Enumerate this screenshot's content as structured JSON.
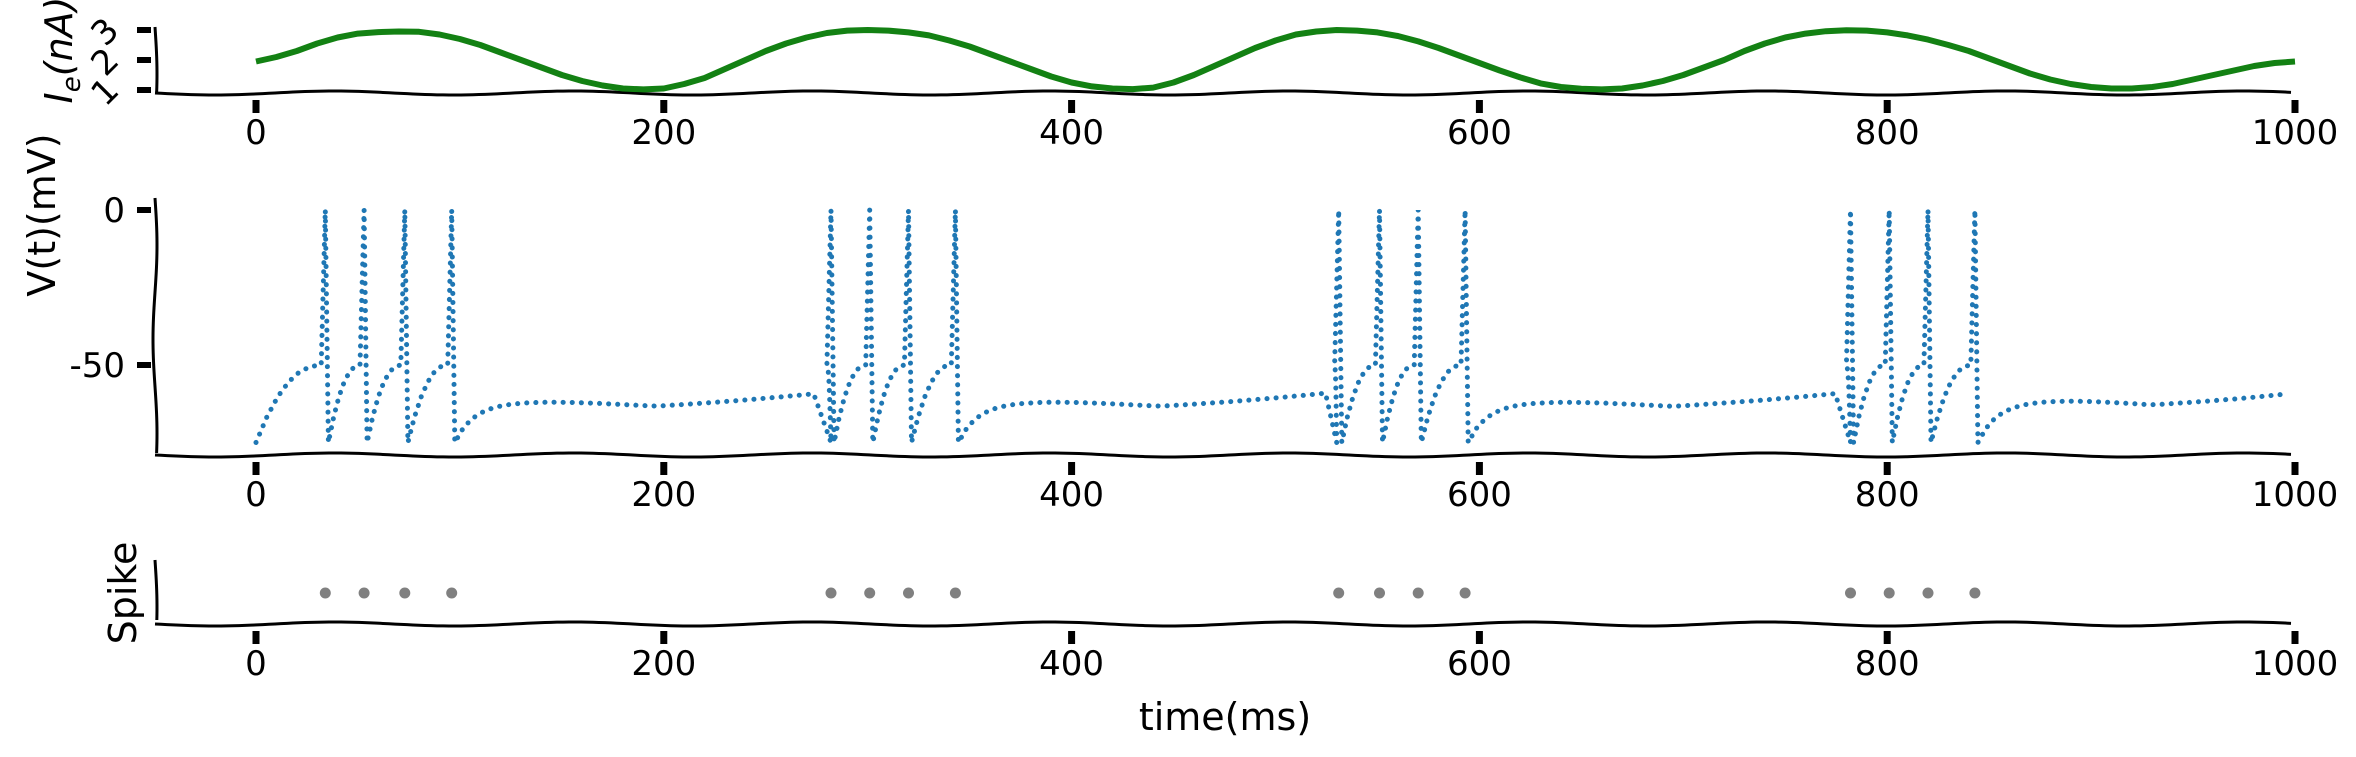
{
  "chart_data": [
    {
      "id": "current",
      "type": "line",
      "ylabel": "I_e(nA)",
      "ylabel_main": "I",
      "ylabel_sub": "e",
      "ylabel_rest": "(nA)",
      "xlim": [
        -50,
        1000
      ],
      "ylim": [
        1,
        3
      ],
      "xticks": [
        "0",
        "200",
        "400",
        "600",
        "800",
        "1000"
      ],
      "yticks": [
        "1",
        "2",
        "3"
      ],
      "color": "#138113",
      "series": [
        {
          "x": [
            0,
            10,
            20,
            30,
            40,
            50,
            60,
            70,
            80,
            90,
            100,
            110,
            120,
            130,
            140,
            150,
            160,
            170,
            180,
            190,
            200,
            210,
            220,
            230,
            240,
            250,
            260,
            270,
            280,
            290,
            300,
            310,
            320,
            330,
            340,
            350,
            360,
            370,
            380,
            390,
            400,
            410,
            420,
            430,
            440,
            450,
            460,
            470,
            480,
            490,
            500,
            510,
            520,
            530,
            540,
            550,
            560,
            570,
            580,
            590,
            600,
            610,
            620,
            630,
            640,
            650,
            660,
            670,
            680,
            690,
            700,
            710,
            720,
            730,
            740,
            750,
            760,
            770,
            780,
            790,
            800,
            810,
            820,
            830,
            840,
            850,
            860,
            870,
            880,
            890,
            900,
            910,
            920,
            930,
            940,
            950,
            960,
            970,
            980,
            990,
            1000
          ],
          "y": [
            1.95,
            2.1,
            2.3,
            2.55,
            2.75,
            2.88,
            2.93,
            2.95,
            2.94,
            2.85,
            2.7,
            2.5,
            2.25,
            2.0,
            1.75,
            1.5,
            1.3,
            1.15,
            1.05,
            1.02,
            1.05,
            1.2,
            1.4,
            1.7,
            2.0,
            2.3,
            2.55,
            2.75,
            2.9,
            2.98,
            3.0,
            2.98,
            2.92,
            2.82,
            2.65,
            2.45,
            2.2,
            1.95,
            1.7,
            1.45,
            1.25,
            1.12,
            1.05,
            1.03,
            1.08,
            1.25,
            1.5,
            1.8,
            2.1,
            2.4,
            2.65,
            2.85,
            2.95,
            3.0,
            2.98,
            2.92,
            2.8,
            2.62,
            2.4,
            2.15,
            1.9,
            1.65,
            1.42,
            1.22,
            1.1,
            1.04,
            1.02,
            1.05,
            1.15,
            1.3,
            1.5,
            1.75,
            2.0,
            2.3,
            2.55,
            2.75,
            2.88,
            2.96,
            2.99,
            2.98,
            2.92,
            2.82,
            2.68,
            2.5,
            2.3,
            2.05,
            1.8,
            1.55,
            1.35,
            1.2,
            1.1,
            1.05,
            1.05,
            1.1,
            1.2,
            1.35,
            1.5,
            1.65,
            1.8,
            1.9,
            1.95
          ]
        }
      ]
    },
    {
      "id": "voltage",
      "type": "line",
      "ylabel": "V(t)(mV)",
      "xlim": [
        -50,
        1000
      ],
      "ylim": [
        -75,
        0
      ],
      "xticks": [
        "0",
        "200",
        "400",
        "600",
        "800",
        "1000"
      ],
      "yticks": [
        "0",
        "-50"
      ],
      "line_style": "dotted",
      "color": "#1f77b4",
      "cluster_starts": [
        0,
        282,
        530,
        782
      ],
      "spike_times": [
        [
          34,
          53,
          73,
          96
        ],
        [
          282,
          301,
          320,
          343
        ],
        [
          531,
          551,
          570,
          593
        ],
        [
          782,
          801,
          820,
          843
        ]
      ],
      "reset_mV": -75,
      "threshold_mV": -50,
      "peak_mV": 0,
      "rest_mV": -65
    },
    {
      "id": "spikes",
      "type": "scatter",
      "ylabel": "Spike",
      "xlabel": "time(ms)",
      "xlim": [
        -50,
        1000
      ],
      "xticks": [
        "0",
        "200",
        "400",
        "600",
        "800",
        "1000"
      ],
      "color": "#808080",
      "series": [
        {
          "x": [
            34,
            53,
            73,
            96,
            282,
            301,
            320,
            343,
            531,
            551,
            570,
            593,
            782,
            801,
            820,
            843
          ],
          "y": [
            1,
            1,
            1,
            1,
            1,
            1,
            1,
            1,
            1,
            1,
            1,
            1,
            1,
            1,
            1,
            1
          ]
        }
      ]
    }
  ]
}
